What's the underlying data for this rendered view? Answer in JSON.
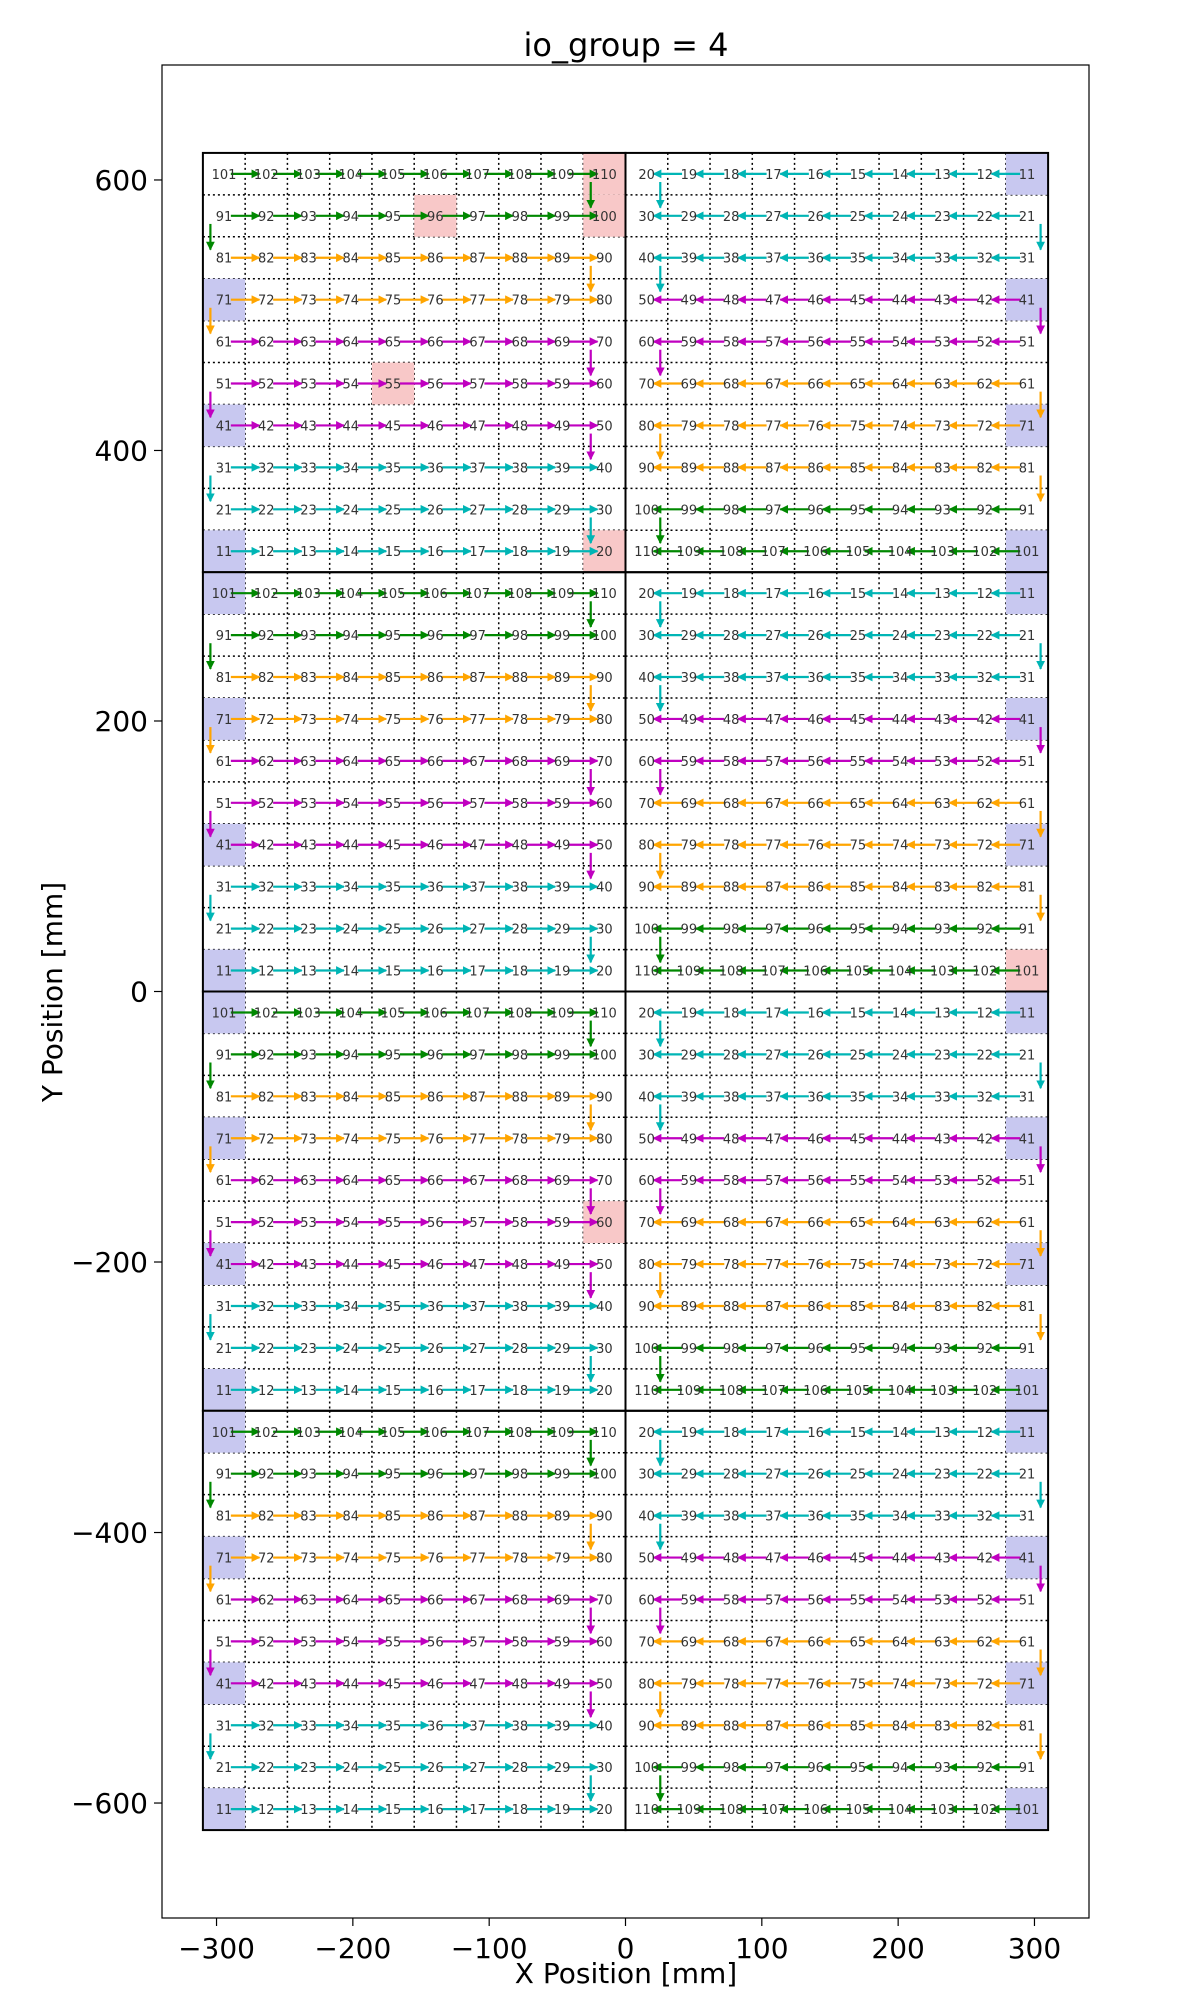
{
  "chart_data": {
    "type": "scatter",
    "title": "io_group = 4",
    "xlabel": "X Position [mm]",
    "ylabel": "Y Position [mm]",
    "xlim": [
      -340,
      340
    ],
    "ylim": [
      -685,
      685
    ],
    "xticks": [
      -300,
      -200,
      -100,
      0,
      100,
      200,
      300
    ],
    "yticks": [
      600,
      400,
      200,
      0,
      -200,
      -400,
      -600
    ],
    "xtick_labels": [
      "−300",
      "−200",
      "−100",
      "0",
      "100",
      "200",
      "300"
    ],
    "ytick_labels": [
      "600",
      "400",
      "200",
      "0",
      "−200",
      "−400",
      "−600"
    ],
    "tile_x_ranges": [
      [
        -310,
        0
      ],
      [
        0,
        310
      ]
    ],
    "tile_y_ranges": [
      [
        310,
        620
      ],
      [
        0,
        310
      ],
      [
        -310,
        0
      ],
      [
        -620,
        -310
      ]
    ],
    "chip_spacing_mm": 31,
    "colors": {
      "root": "#c8c8f0",
      "missing": "#f8c8c8",
      "orange": "#ffa500",
      "cyan": "#00b5b5",
      "magenta": "#c000c0",
      "green": "#008800"
    },
    "left_chip_grid": [
      [
        101,
        102,
        103,
        104,
        105,
        106,
        107,
        108,
        109,
        110
      ],
      [
        91,
        92,
        93,
        94,
        95,
        96,
        97,
        98,
        99,
        100
      ],
      [
        81,
        82,
        83,
        84,
        85,
        86,
        87,
        88,
        89,
        90
      ],
      [
        71,
        72,
        73,
        74,
        75,
        76,
        77,
        78,
        79,
        80
      ],
      [
        61,
        62,
        63,
        64,
        65,
        66,
        67,
        68,
        69,
        70
      ],
      [
        51,
        52,
        53,
        54,
        55,
        56,
        57,
        58,
        59,
        60
      ],
      [
        41,
        42,
        43,
        44,
        45,
        46,
        47,
        48,
        49,
        50
      ],
      [
        31,
        32,
        33,
        34,
        35,
        36,
        37,
        38,
        39,
        40
      ],
      [
        21,
        22,
        23,
        24,
        25,
        26,
        27,
        28,
        29,
        30
      ],
      [
        11,
        12,
        13,
        14,
        15,
        16,
        17,
        18,
        19,
        20
      ]
    ],
    "right_chip_grid": [
      [
        20,
        19,
        18,
        17,
        16,
        15,
        14,
        13,
        12,
        11
      ],
      [
        30,
        29,
        28,
        27,
        26,
        25,
        24,
        23,
        22,
        21
      ],
      [
        40,
        39,
        38,
        37,
        36,
        35,
        34,
        33,
        32,
        31
      ],
      [
        50,
        49,
        48,
        47,
        46,
        45,
        44,
        43,
        42,
        41
      ],
      [
        60,
        59,
        58,
        57,
        56,
        55,
        54,
        53,
        52,
        51
      ],
      [
        70,
        69,
        68,
        67,
        66,
        65,
        64,
        63,
        62,
        61
      ],
      [
        80,
        79,
        78,
        77,
        76,
        75,
        74,
        73,
        72,
        71
      ],
      [
        90,
        89,
        88,
        87,
        86,
        85,
        84,
        83,
        82,
        81
      ],
      [
        100,
        99,
        98,
        97,
        96,
        95,
        94,
        93,
        92,
        91
      ],
      [
        110,
        109,
        108,
        107,
        106,
        105,
        104,
        103,
        102,
        101
      ]
    ],
    "left_row_colors": [
      "green",
      "green",
      "orange",
      "orange",
      "magenta",
      "magenta",
      "magenta",
      "cyan",
      "cyan",
      "cyan"
    ],
    "right_row_colors": [
      "cyan",
      "cyan",
      "cyan",
      "magenta",
      "magenta",
      "orange",
      "orange",
      "orange",
      "green",
      "green"
    ],
    "root_chips": [
      {
        "tile": "TR",
        "chip": 11
      },
      {
        "tile": "TR",
        "chip": 41
      },
      {
        "tile": "TR",
        "chip": 71
      },
      {
        "tile": "TR",
        "chip": 101
      },
      {
        "tile": "TL",
        "chip": 11
      },
      {
        "tile": "TL",
        "chip": 41
      },
      {
        "tile": "TL",
        "chip": 71
      },
      {
        "tile": "L2",
        "chip": 11
      },
      {
        "tile": "L2",
        "chip": 41
      },
      {
        "tile": "L2",
        "chip": 71
      },
      {
        "tile": "L2",
        "chip": 101
      },
      {
        "tile": "R2",
        "chip": 11
      },
      {
        "tile": "R2",
        "chip": 41
      },
      {
        "tile": "R2",
        "chip": 71
      },
      {
        "tile": "L3",
        "chip": 11
      },
      {
        "tile": "L3",
        "chip": 41
      },
      {
        "tile": "L3",
        "chip": 71
      },
      {
        "tile": "L3",
        "chip": 101
      },
      {
        "tile": "R3",
        "chip": 11
      },
      {
        "tile": "R3",
        "chip": 41
      },
      {
        "tile": "R3",
        "chip": 71
      },
      {
        "tile": "R3",
        "chip": 101
      },
      {
        "tile": "L4",
        "chip": 11
      },
      {
        "tile": "L4",
        "chip": 41
      },
      {
        "tile": "L4",
        "chip": 71
      },
      {
        "tile": "L4",
        "chip": 101
      },
      {
        "tile": "R4",
        "chip": 11
      },
      {
        "tile": "R4",
        "chip": 41
      },
      {
        "tile": "R4",
        "chip": 71
      },
      {
        "tile": "R4",
        "chip": 101
      }
    ],
    "missing_chips": [
      {
        "tile": "TL",
        "chip": 110
      },
      {
        "tile": "TL",
        "chip": 100
      },
      {
        "tile": "TL",
        "chip": 96
      },
      {
        "tile": "TL",
        "chip": 55
      },
      {
        "tile": "TL",
        "chip": 20
      },
      {
        "tile": "R2",
        "chip": 101
      },
      {
        "tile": "L3",
        "chip": 60
      }
    ]
  }
}
